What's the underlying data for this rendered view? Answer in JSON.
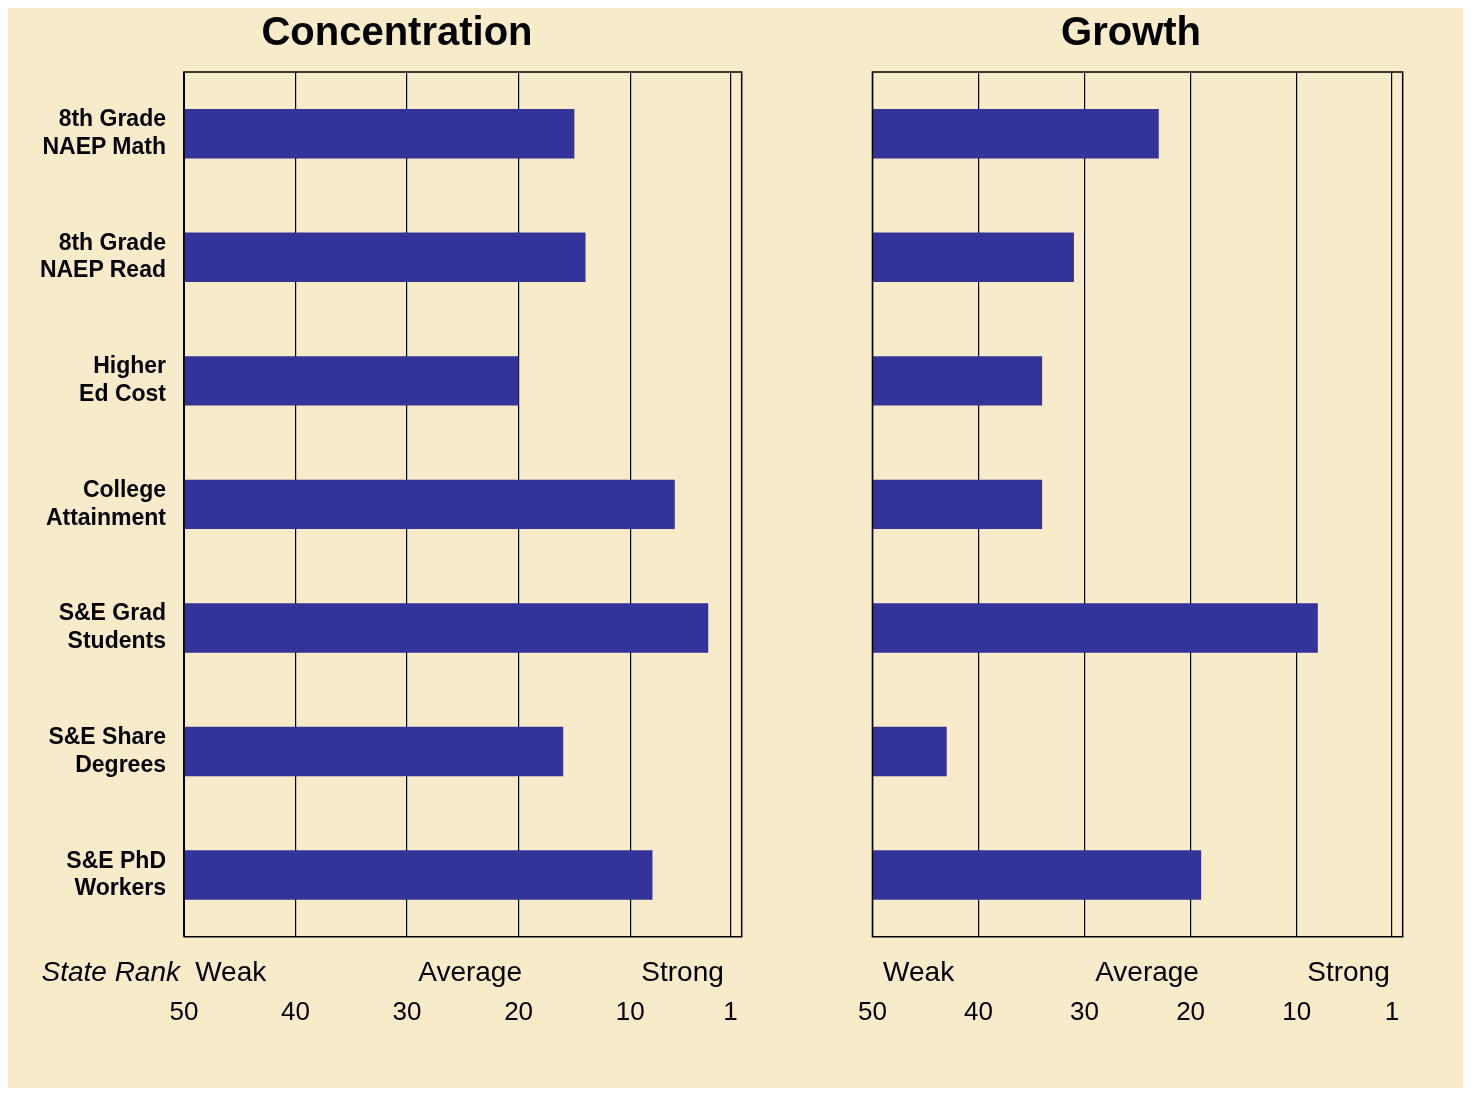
{
  "chart_data": [
    {
      "type": "bar",
      "orientation": "horizontal",
      "title": "Concentration",
      "categories": [
        "8th Grade NAEP Math",
        "8th Grade NAEP Read",
        "Higher Ed Cost",
        "College Attainment",
        "S&E Grad Students",
        "S&E Share Degrees",
        "S&E PhD Workers"
      ],
      "base": [
        50,
        50,
        50,
        50,
        50,
        50,
        50
      ],
      "values": [
        -35,
        -36,
        -30,
        -44,
        -47,
        -34,
        -42
      ],
      "color": "#333399",
      "xlim": [
        50,
        0
      ],
      "xticks": [
        50,
        40,
        30,
        20,
        10,
        1
      ],
      "grid": "x",
      "annotations": [
        "State Rank",
        "Weak",
        "Average",
        "Strong"
      ]
    },
    {
      "type": "bar",
      "orientation": "horizontal",
      "title": "Growth",
      "categories": [
        null,
        null,
        null,
        null,
        null,
        null,
        null
      ],
      "base": [
        50,
        50,
        50,
        50,
        50,
        50,
        50
      ],
      "values": [
        -27,
        -19,
        -16,
        -16,
        -42,
        -7,
        -31
      ],
      "color": "#333399",
      "xlim": [
        50,
        0
      ],
      "xticks": [
        50,
        40,
        30,
        20,
        10,
        1
      ],
      "grid": "x",
      "tick_labels": "x",
      "annotations": [
        "Weak",
        "Average",
        "Strong"
      ]
    }
  ]
}
